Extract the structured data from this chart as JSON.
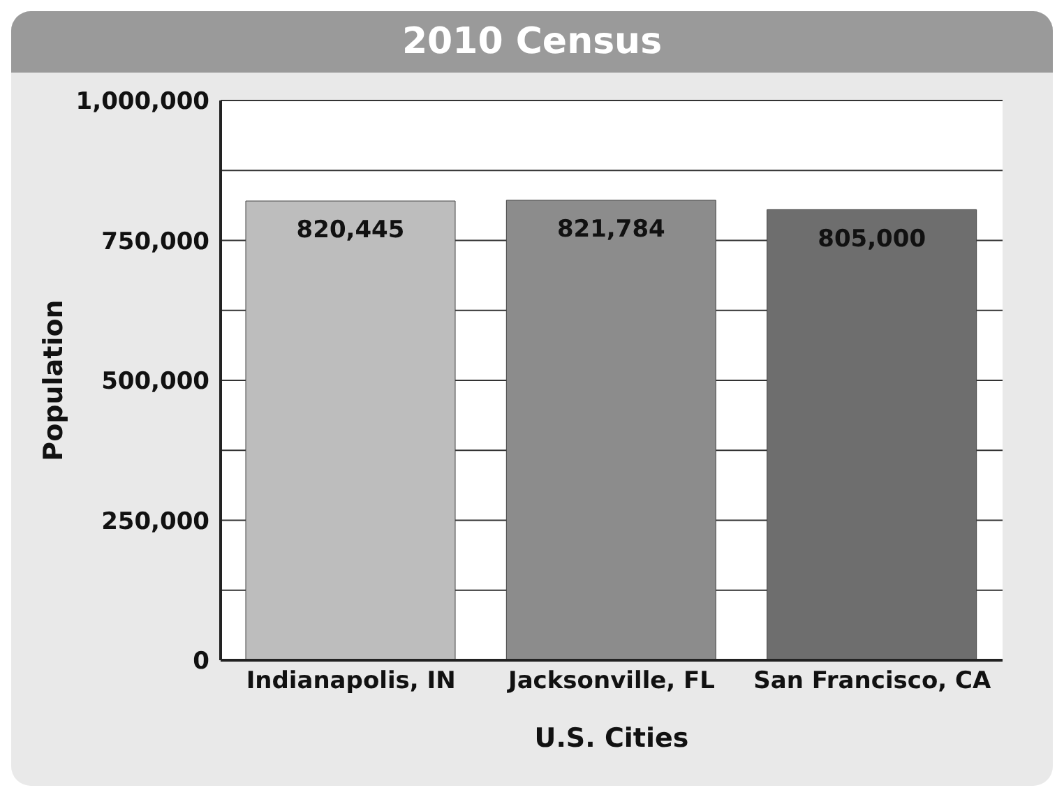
{
  "chart_data": {
    "type": "bar",
    "title": "2010 Census",
    "xlabel": "U.S. Cities",
    "ylabel": "Population",
    "categories": [
      "Indianapolis, IN",
      "Jacksonville, FL",
      "San Francisco, CA"
    ],
    "values": [
      820445,
      821784,
      805000
    ],
    "colors": [
      "#bdbdbd",
      "#8c8c8c",
      "#6e6e6e"
    ],
    "value_labels": [
      "820,445",
      "821,784",
      "805,000"
    ],
    "ylim": [
      0,
      1000000
    ],
    "yticks": [
      {
        "value": 0,
        "label": "0"
      },
      {
        "value": 125000,
        "label": null
      },
      {
        "value": 250000,
        "label": "250,000"
      },
      {
        "value": 375000,
        "label": null
      },
      {
        "value": 500000,
        "label": "500,000"
      },
      {
        "value": 625000,
        "label": null
      },
      {
        "value": 750000,
        "label": "750,000"
      },
      {
        "value": 875000,
        "label": null
      },
      {
        "value": 1000000,
        "label": "1,000,000"
      }
    ],
    "grid": "y"
  }
}
